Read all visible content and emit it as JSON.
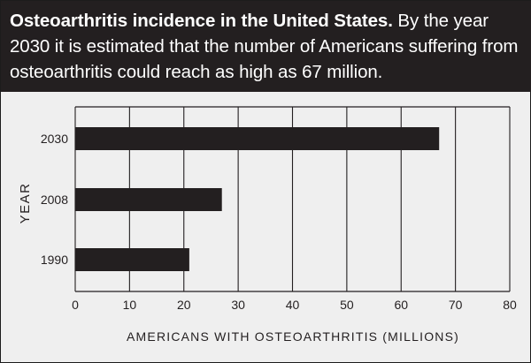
{
  "caption": {
    "bold": "Osteoarthritis incidence in the United States.",
    "text": " By the year 2030 it is estimated that the number of Americans suffering from osteoarthritis could reach as high as 67 million."
  },
  "colors": {
    "header_bg": "#231f20",
    "panel_bg": "#efefef",
    "bar": "#231f20",
    "grid": "#231f20"
  },
  "chart_data": {
    "type": "bar",
    "orientation": "horizontal",
    "categories": [
      "2030",
      "2008",
      "1990"
    ],
    "values": [
      67,
      27,
      21
    ],
    "title": "",
    "xlabel": "AMERICANS WITH OSTEOARTHRITIS (MILLIONS)",
    "ylabel": "YEAR",
    "xlim": [
      0,
      80
    ],
    "xticks": [
      0,
      10,
      20,
      30,
      40,
      50,
      60,
      70,
      80
    ],
    "grid": "vertical",
    "legend": "none"
  }
}
